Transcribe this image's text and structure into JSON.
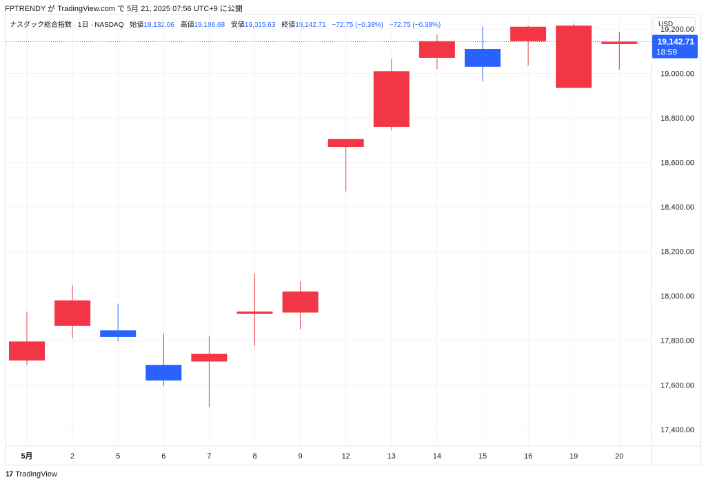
{
  "header": {
    "publish_text": "FPTRENDY が TradingView.com で 5月 21, 2025 07:56 UTC+9 に公開"
  },
  "legend": {
    "symbol": "ナスダック総合指数 · 1日 · NASDAQ",
    "open_label": "始値",
    "open": "19,132.06",
    "high_label": "高値",
    "high": "19,186.68",
    "low_label": "安値",
    "low": "19,015.63",
    "close_label": "終値",
    "close": "19,142.71",
    "change": "−72.75 (−0.38%)",
    "change2": "−72.75 (−0.38%)"
  },
  "currency": "USD",
  "price_tag": {
    "price": "19,142.71",
    "time": "18:59",
    "color": "#2962ff"
  },
  "footer": {
    "logo_mark": "17",
    "brand": "TradingView"
  },
  "colors": {
    "up": "#2962ff",
    "down": "#f23645",
    "grid": "#f0f3fa",
    "axis_text": "#131722"
  },
  "chart_data": {
    "type": "candlestick",
    "x_labels": [
      "5月",
      "2",
      "5",
      "6",
      "7",
      "8",
      "9",
      "12",
      "13",
      "14",
      "15",
      "16",
      "19",
      "20"
    ],
    "y_ticks": [
      17400,
      17600,
      17800,
      18000,
      18200,
      18400,
      18600,
      18800,
      19000,
      19200
    ],
    "y_tick_labels": [
      "17,400.00",
      "17,600.00",
      "17,800.00",
      "18,000.00",
      "18,200.00",
      "18,400.00",
      "18,600.00",
      "18,800.00",
      "19,000.00",
      "19,200.00"
    ],
    "ylim": [
      17325,
      19265
    ],
    "last_price": 19142.71,
    "candles": [
      {
        "x": "5月",
        "open": 17710,
        "high": 17930,
        "low": 17690,
        "close": 17795
      },
      {
        "x": "2",
        "open": 17865,
        "high": 18050,
        "low": 17810,
        "close": 17980
      },
      {
        "x": "5",
        "open": 17845,
        "high": 17965,
        "low": 17795,
        "close": 17815
      },
      {
        "x": "6",
        "open": 17690,
        "high": 17830,
        "low": 17595,
        "close": 17620
      },
      {
        "x": "7",
        "open": 17705,
        "high": 17820,
        "low": 17500,
        "close": 17740
      },
      {
        "x": "8",
        "open": 17920,
        "high": 18100,
        "low": 17775,
        "close": 17930
      },
      {
        "x": "9",
        "open": 17925,
        "high": 18065,
        "low": 17850,
        "close": 18020
      },
      {
        "x": "12",
        "open": 18670,
        "high": 18700,
        "low": 18470,
        "close": 18705
      },
      {
        "x": "13",
        "open": 18760,
        "high": 19065,
        "low": 18745,
        "close": 19010
      },
      {
        "x": "14",
        "open": 19070,
        "high": 19175,
        "low": 19020,
        "close": 19145
      },
      {
        "x": "15",
        "open": 19110,
        "high": 19210,
        "low": 18965,
        "close": 19030
      },
      {
        "x": "16",
        "open": 19145,
        "high": 19215,
        "low": 19035,
        "close": 19210
      },
      {
        "x": "19",
        "open": 18935,
        "high": 19225,
        "low": 18935,
        "close": 19215
      },
      {
        "x": "20",
        "open": 19132.06,
        "high": 19186.68,
        "low": 19015.63,
        "close": 19142.71
      }
    ]
  }
}
